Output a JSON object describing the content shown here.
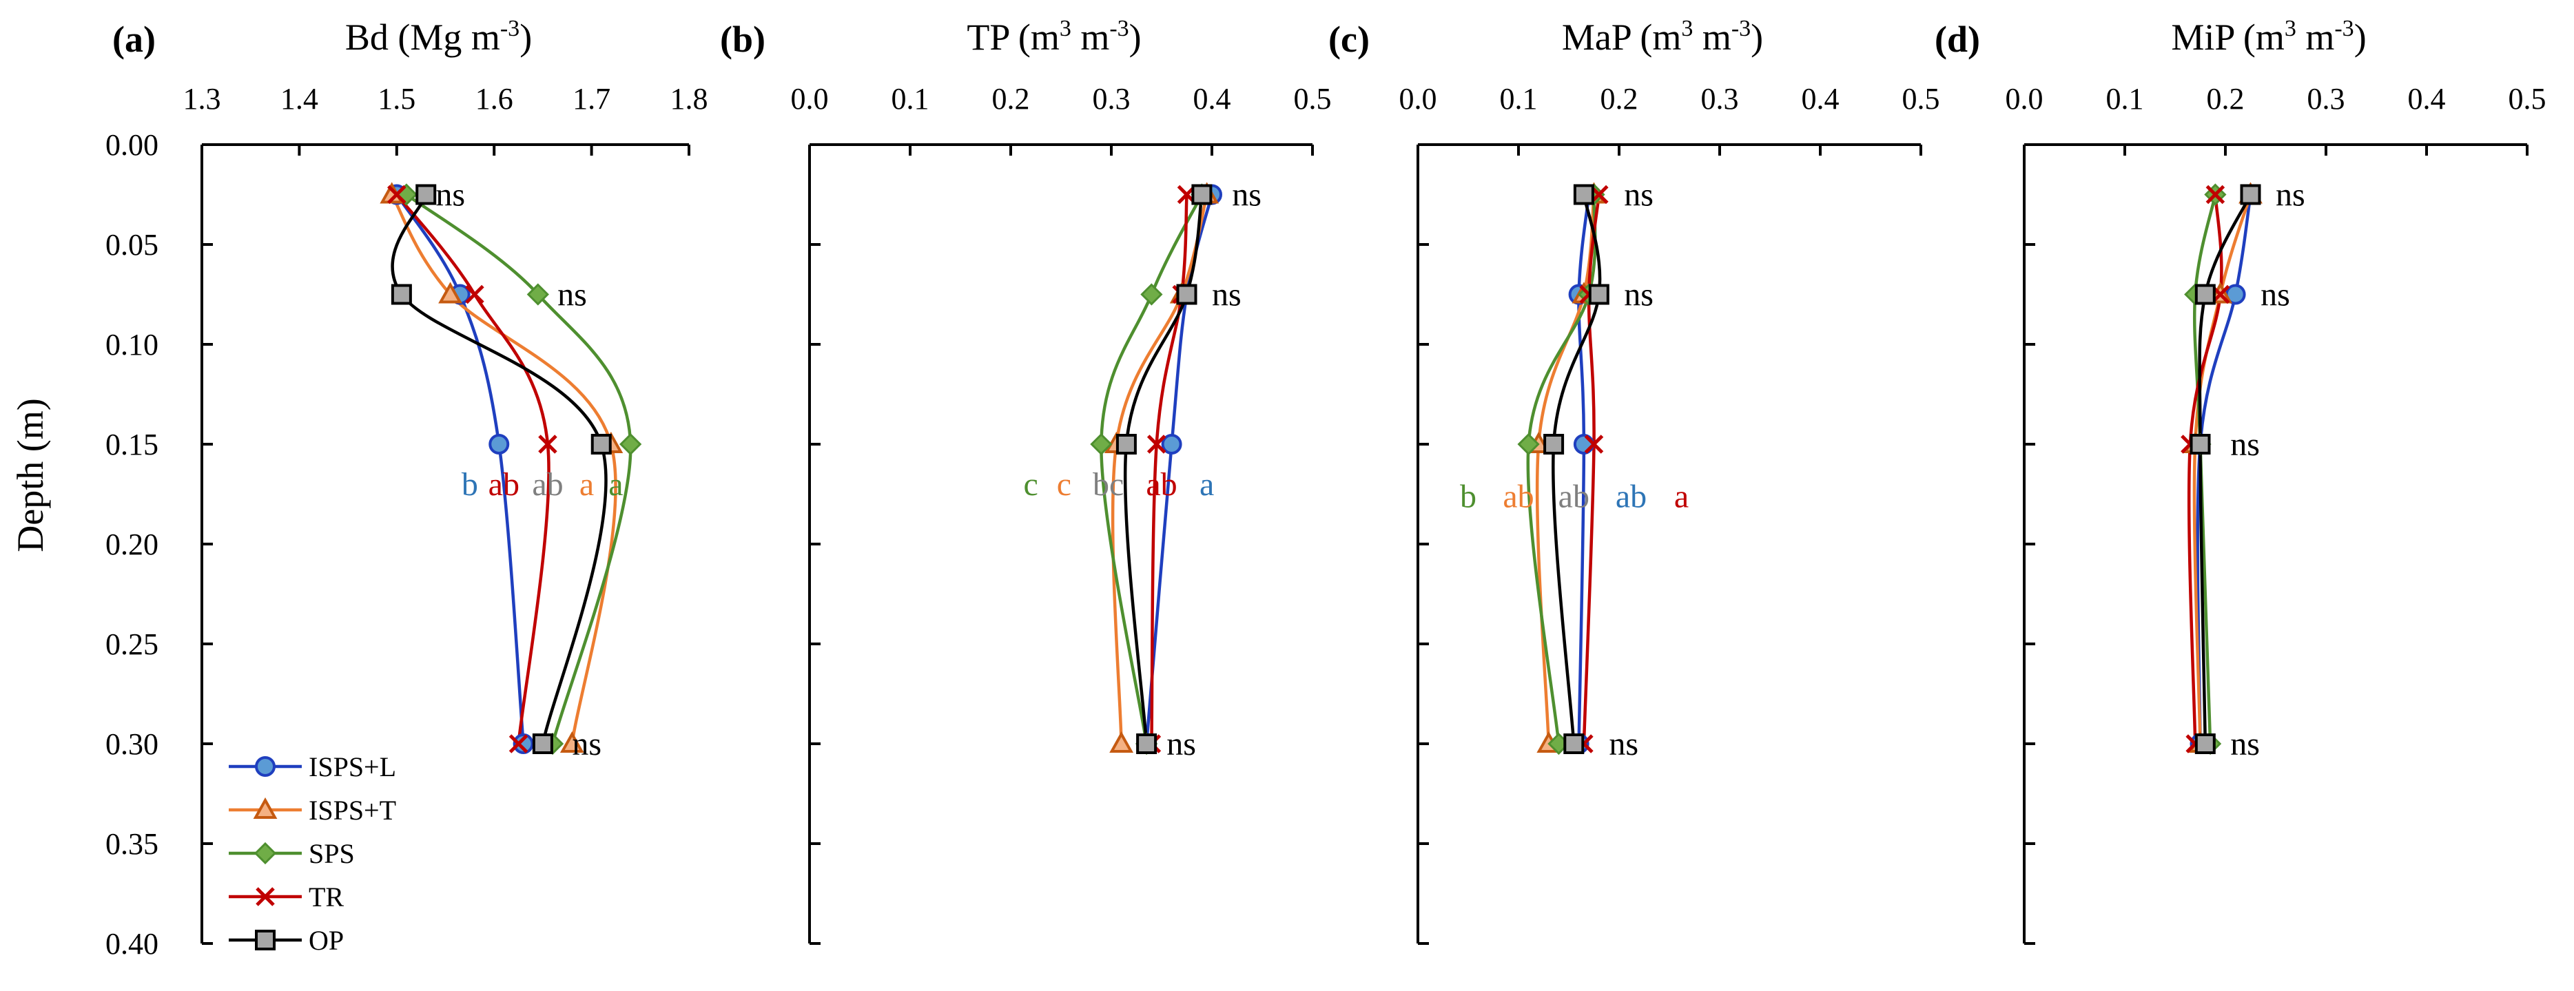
{
  "figure": {
    "ylabel": "Depth (m)",
    "colors": {
      "ISPS+L": "#1f3fbf",
      "ISPS+T": "#ed7d31",
      "SPS": "#4e8f2f",
      "TR": "#c00000",
      "OP": "#000000",
      "OP_fill": "#a6a6a6"
    },
    "series": [
      {
        "name": "ISPS+L",
        "marker": "circle",
        "fill": "#5b9bd5",
        "stroke": "#1f3fbf"
      },
      {
        "name": "ISPS+T",
        "marker": "triangle",
        "fill": "#f4b183",
        "stroke": "#c55a11"
      },
      {
        "name": "SPS",
        "marker": "diamond",
        "fill": "#70ad47",
        "stroke": "#4e8f2f"
      },
      {
        "name": "TR",
        "marker": "x",
        "fill": "none",
        "stroke": "#c00000"
      },
      {
        "name": "OP",
        "marker": "square",
        "fill": "#a6a6a6",
        "stroke": "#000000"
      }
    ]
  },
  "chart_data": [
    {
      "type": "line",
      "panel_label": "(a)",
      "title": "Bd (Mg m-3)",
      "title_main": "Bd (Mg m",
      "title_sup": "-3",
      "title_end": ")",
      "xlim": [
        1.3,
        1.8
      ],
      "xticks": [
        "1.3",
        "1.4",
        "1.5",
        "1.6",
        "1.7",
        "1.8"
      ],
      "ylim": [
        0.0,
        0.4
      ],
      "yticks": [
        "0.00",
        "0.05",
        "0.10",
        "0.15",
        "0.20",
        "0.25",
        "0.30",
        "0.35",
        "0.40"
      ],
      "depths": [
        0.025,
        0.075,
        0.15,
        0.3
      ],
      "series": [
        {
          "name": "ISPS+L",
          "values": [
            1.5,
            1.565,
            1.605,
            1.63
          ]
        },
        {
          "name": "ISPS+T",
          "values": [
            1.495,
            1.555,
            1.72,
            1.68
          ]
        },
        {
          "name": "SPS",
          "values": [
            1.51,
            1.645,
            1.74,
            1.66
          ]
        },
        {
          "name": "TR",
          "values": [
            1.5,
            1.58,
            1.655,
            1.625
          ]
        },
        {
          "name": "OP",
          "values": [
            1.53,
            1.505,
            1.71,
            1.65
          ]
        }
      ],
      "annotations": [
        {
          "text": "ns",
          "depth": 0.025,
          "x": 1.54
        },
        {
          "text": "ns",
          "depth": 0.075,
          "x": 1.665
        },
        {
          "text": "ns",
          "depth": 0.3,
          "x": 1.68
        }
      ],
      "letters": [
        {
          "text": "b",
          "series": "ISPS+L",
          "x": 1.575
        },
        {
          "text": "ab",
          "series": "TR",
          "x": 1.61
        },
        {
          "text": "ab",
          "series": "OP",
          "x": 1.655
        },
        {
          "text": "a",
          "series": "ISPS+T",
          "x": 1.695
        },
        {
          "text": "a",
          "series": "SPS",
          "x": 1.725
        }
      ],
      "letters_depth": 0.17
    },
    {
      "type": "line",
      "panel_label": "(b)",
      "title": "TP (m3 m-3)",
      "title_main": "TP (m",
      "title_sup": "3",
      "title_mid": " m",
      "title_sup2": "-3",
      "title_end": ")",
      "xlim": [
        0.0,
        0.5
      ],
      "xticks": [
        "0.0",
        "0.1",
        "0.2",
        "0.3",
        "0.4",
        "0.5"
      ],
      "ylim": [
        0.0,
        0.4
      ],
      "depths": [
        0.025,
        0.075,
        0.15,
        0.3
      ],
      "series": [
        {
          "name": "ISPS+L",
          "values": [
            0.4,
            0.375,
            0.36,
            0.335
          ]
        },
        {
          "name": "ISPS+T",
          "values": [
            0.395,
            0.37,
            0.305,
            0.31
          ]
        },
        {
          "name": "SPS",
          "values": [
            0.39,
            0.34,
            0.29,
            0.335
          ]
        },
        {
          "name": "TR",
          "values": [
            0.375,
            0.37,
            0.345,
            0.34
          ]
        },
        {
          "name": "OP",
          "values": [
            0.39,
            0.375,
            0.315,
            0.335
          ]
        }
      ],
      "annotations": [
        {
          "text": "ns",
          "depth": 0.025,
          "x": 0.42
        },
        {
          "text": "ns",
          "depth": 0.075,
          "x": 0.4
        },
        {
          "text": "ns",
          "depth": 0.3,
          "x": 0.355
        }
      ],
      "letters": [
        {
          "text": "c",
          "series": "SPS",
          "x": 0.22
        },
        {
          "text": "c",
          "series": "ISPS+T",
          "x": 0.253
        },
        {
          "text": "bc",
          "series": "OP",
          "x": 0.297
        },
        {
          "text": "ab",
          "series": "TR",
          "x": 0.35
        },
        {
          "text": "a",
          "series": "ISPS+L",
          "x": 0.395
        }
      ],
      "letters_depth": 0.17
    },
    {
      "type": "line",
      "panel_label": "(c)",
      "title": "MaP (m3 m-3)",
      "title_main": "MaP (m",
      "title_sup": "3",
      "title_mid": " m",
      "title_sup2": "-3",
      "title_end": ")",
      "xlim": [
        0.0,
        0.5
      ],
      "xticks": [
        "0.0",
        "0.1",
        "0.2",
        "0.3",
        "0.4",
        "0.5"
      ],
      "ylim": [
        0.0,
        0.4
      ],
      "depths": [
        0.025,
        0.075,
        0.15,
        0.3
      ],
      "series": [
        {
          "name": "ISPS+L",
          "values": [
            0.17,
            0.16,
            0.165,
            0.16
          ]
        },
        {
          "name": "ISPS+T",
          "values": [
            0.175,
            0.165,
            0.12,
            0.13
          ]
        },
        {
          "name": "SPS",
          "values": [
            0.175,
            0.17,
            0.11,
            0.14
          ]
        },
        {
          "name": "TR",
          "values": [
            0.18,
            0.17,
            0.175,
            0.165
          ]
        },
        {
          "name": "OP",
          "values": [
            0.165,
            0.18,
            0.135,
            0.155
          ]
        }
      ],
      "annotations": [
        {
          "text": "ns",
          "depth": 0.025,
          "x": 0.205
        },
        {
          "text": "ns",
          "depth": 0.075,
          "x": 0.205
        },
        {
          "text": "ns",
          "depth": 0.3,
          "x": 0.19
        }
      ],
      "letters": [
        {
          "text": "b",
          "series": "SPS",
          "x": 0.05
        },
        {
          "text": "ab",
          "series": "ISPS+T",
          "x": 0.1
        },
        {
          "text": "ab",
          "series": "OP",
          "x": 0.155
        },
        {
          "text": "ab",
          "series": "ISPS+L",
          "x": 0.212
        },
        {
          "text": "a",
          "series": "TR",
          "x": 0.262
        }
      ],
      "letters_depth": 0.176
    },
    {
      "type": "line",
      "panel_label": "(d)",
      "title": "MiP (m3 m-3)",
      "title_main": "MiP (m",
      "title_sup": "3",
      "title_mid": " m",
      "title_sup2": "-3",
      "title_end": ")",
      "xlim": [
        0.0,
        0.5
      ],
      "xticks": [
        "0.0",
        "0.1",
        "0.2",
        "0.3",
        "0.4",
        "0.5"
      ],
      "ylim": [
        0.0,
        0.4
      ],
      "depths": [
        0.025,
        0.075,
        0.15,
        0.3
      ],
      "series": [
        {
          "name": "ISPS+L",
          "values": [
            0.225,
            0.21,
            0.175,
            0.175
          ]
        },
        {
          "name": "ISPS+T",
          "values": [
            0.225,
            0.195,
            0.17,
            0.175
          ]
        },
        {
          "name": "SPS",
          "values": [
            0.19,
            0.17,
            0.175,
            0.185
          ]
        },
        {
          "name": "TR",
          "values": [
            0.19,
            0.195,
            0.165,
            0.17
          ]
        },
        {
          "name": "OP",
          "values": [
            0.225,
            0.18,
            0.175,
            0.18
          ]
        }
      ],
      "annotations": [
        {
          "text": "ns",
          "depth": 0.025,
          "x": 0.25
        },
        {
          "text": "ns",
          "depth": 0.075,
          "x": 0.235
        },
        {
          "text": "ns",
          "depth": 0.15,
          "x": 0.205
        },
        {
          "text": "ns",
          "depth": 0.3,
          "x": 0.205
        }
      ],
      "letters": []
    }
  ]
}
